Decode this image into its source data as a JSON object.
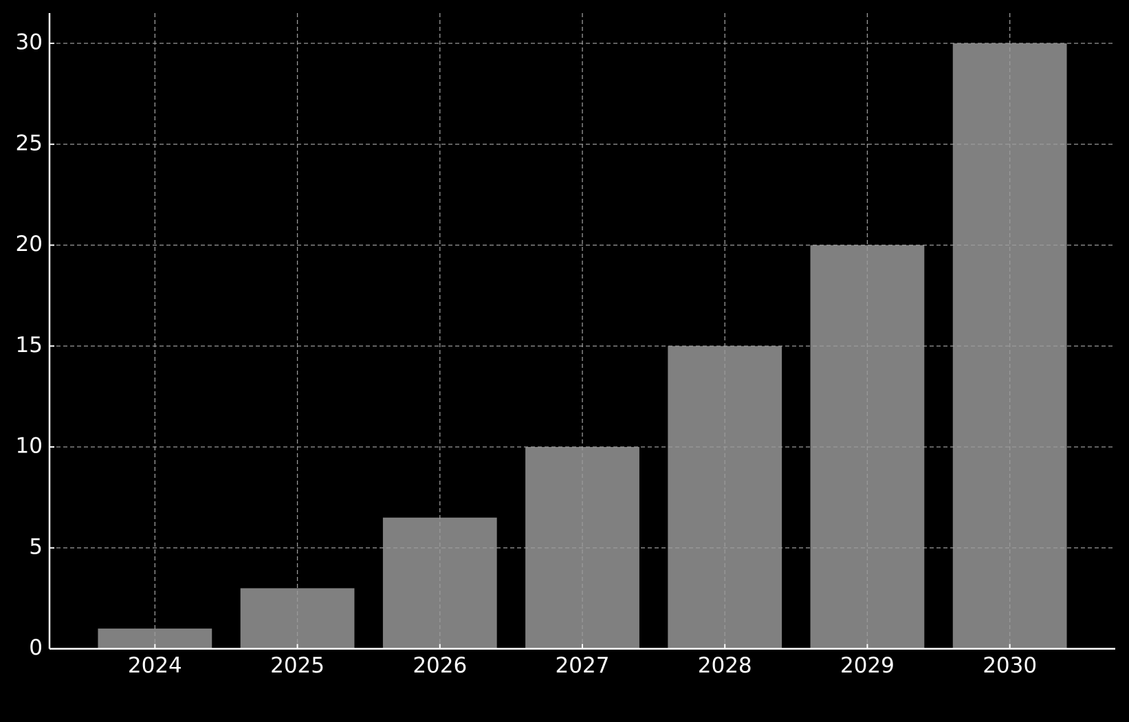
{
  "chart_data": {
    "type": "bar",
    "categories": [
      "2024",
      "2025",
      "2026",
      "2027",
      "2028",
      "2029",
      "2030"
    ],
    "values": [
      1,
      3,
      6.5,
      10,
      15,
      20,
      30
    ],
    "color": "#808080",
    "ylim": [
      0,
      31.5
    ],
    "yticks": [
      0,
      5,
      10,
      15,
      20,
      25,
      30
    ],
    "grid": true
  }
}
